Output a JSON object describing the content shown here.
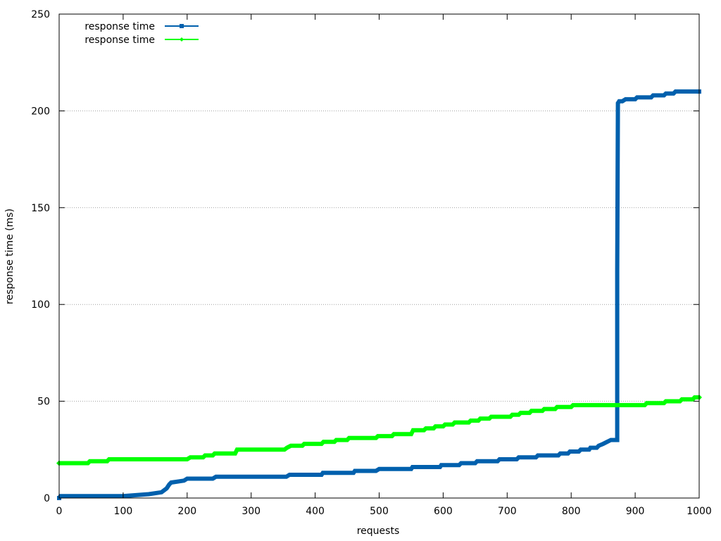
{
  "chart_data": {
    "type": "line",
    "title": "",
    "xlabel": "requests",
    "ylabel": "response time (ms)",
    "xlim": [
      0,
      1000
    ],
    "ylim": [
      0,
      250
    ],
    "x_ticks": [
      0,
      100,
      200,
      300,
      400,
      500,
      600,
      700,
      800,
      900,
      1000
    ],
    "y_ticks": [
      0,
      50,
      100,
      150,
      200,
      250
    ],
    "y_grid": true,
    "legend_position": "top-left",
    "series": [
      {
        "name": "response time",
        "color": "#0060ad",
        "marker": "square",
        "points": [
          [
            0,
            0
          ],
          [
            2,
            1
          ],
          [
            60,
            1
          ],
          [
            100,
            1
          ],
          [
            140,
            2
          ],
          [
            160,
            3
          ],
          [
            168,
            5
          ],
          [
            172,
            7
          ],
          [
            175,
            8
          ],
          [
            195,
            9
          ],
          [
            200,
            10
          ],
          [
            240,
            10
          ],
          [
            245,
            11
          ],
          [
            300,
            11
          ],
          [
            355,
            11
          ],
          [
            360,
            12
          ],
          [
            410,
            12
          ],
          [
            412,
            13
          ],
          [
            460,
            13
          ],
          [
            462,
            14
          ],
          [
            495,
            14
          ],
          [
            500,
            15
          ],
          [
            550,
            15
          ],
          [
            552,
            16
          ],
          [
            595,
            16
          ],
          [
            597,
            17
          ],
          [
            625,
            17
          ],
          [
            628,
            18
          ],
          [
            650,
            18
          ],
          [
            653,
            19
          ],
          [
            685,
            19
          ],
          [
            688,
            20
          ],
          [
            715,
            20
          ],
          [
            718,
            21
          ],
          [
            745,
            21
          ],
          [
            748,
            22
          ],
          [
            780,
            22
          ],
          [
            783,
            23
          ],
          [
            795,
            23
          ],
          [
            798,
            24
          ],
          [
            812,
            24
          ],
          [
            815,
            25
          ],
          [
            828,
            25
          ],
          [
            830,
            26
          ],
          [
            840,
            26
          ],
          [
            843,
            27
          ],
          [
            850,
            28
          ],
          [
            856,
            29
          ],
          [
            862,
            30
          ],
          [
            872,
            30
          ],
          [
            872,
            117
          ],
          [
            873,
            204
          ],
          [
            875,
            205
          ],
          [
            880,
            205
          ],
          [
            885,
            206
          ],
          [
            900,
            206
          ],
          [
            903,
            207
          ],
          [
            925,
            207
          ],
          [
            928,
            208
          ],
          [
            945,
            208
          ],
          [
            948,
            209
          ],
          [
            960,
            209
          ],
          [
            963,
            210
          ],
          [
            1000,
            210
          ]
        ]
      },
      {
        "name": "response time",
        "color": "#00ff00",
        "marker": "diamond",
        "points": [
          [
            0,
            18
          ],
          [
            45,
            18
          ],
          [
            48,
            19
          ],
          [
            75,
            19
          ],
          [
            78,
            20
          ],
          [
            100,
            20
          ],
          [
            150,
            20
          ],
          [
            200,
            20
          ],
          [
            205,
            21
          ],
          [
            225,
            21
          ],
          [
            228,
            22
          ],
          [
            240,
            22
          ],
          [
            243,
            23
          ],
          [
            275,
            23
          ],
          [
            278,
            25
          ],
          [
            300,
            25
          ],
          [
            352,
            25
          ],
          [
            356,
            26
          ],
          [
            362,
            27
          ],
          [
            380,
            27
          ],
          [
            383,
            28
          ],
          [
            410,
            28
          ],
          [
            413,
            29
          ],
          [
            430,
            29
          ],
          [
            433,
            30
          ],
          [
            450,
            30
          ],
          [
            453,
            31
          ],
          [
            495,
            31
          ],
          [
            498,
            32
          ],
          [
            520,
            32
          ],
          [
            523,
            33
          ],
          [
            550,
            33
          ],
          [
            553,
            35
          ],
          [
            570,
            35
          ],
          [
            573,
            36
          ],
          [
            585,
            36
          ],
          [
            588,
            37
          ],
          [
            600,
            37
          ],
          [
            603,
            38
          ],
          [
            615,
            38
          ],
          [
            618,
            39
          ],
          [
            640,
            39
          ],
          [
            643,
            40
          ],
          [
            655,
            40
          ],
          [
            658,
            41
          ],
          [
            672,
            41
          ],
          [
            675,
            42
          ],
          [
            705,
            42
          ],
          [
            708,
            43
          ],
          [
            718,
            43
          ],
          [
            721,
            44
          ],
          [
            735,
            44
          ],
          [
            738,
            45
          ],
          [
            755,
            45
          ],
          [
            758,
            46
          ],
          [
            775,
            46
          ],
          [
            778,
            47
          ],
          [
            800,
            47
          ],
          [
            803,
            48
          ],
          [
            900,
            48
          ],
          [
            915,
            48
          ],
          [
            918,
            49
          ],
          [
            945,
            49
          ],
          [
            948,
            50
          ],
          [
            970,
            50
          ],
          [
            973,
            51
          ],
          [
            990,
            51
          ],
          [
            993,
            52
          ],
          [
            1000,
            52
          ]
        ]
      }
    ]
  }
}
